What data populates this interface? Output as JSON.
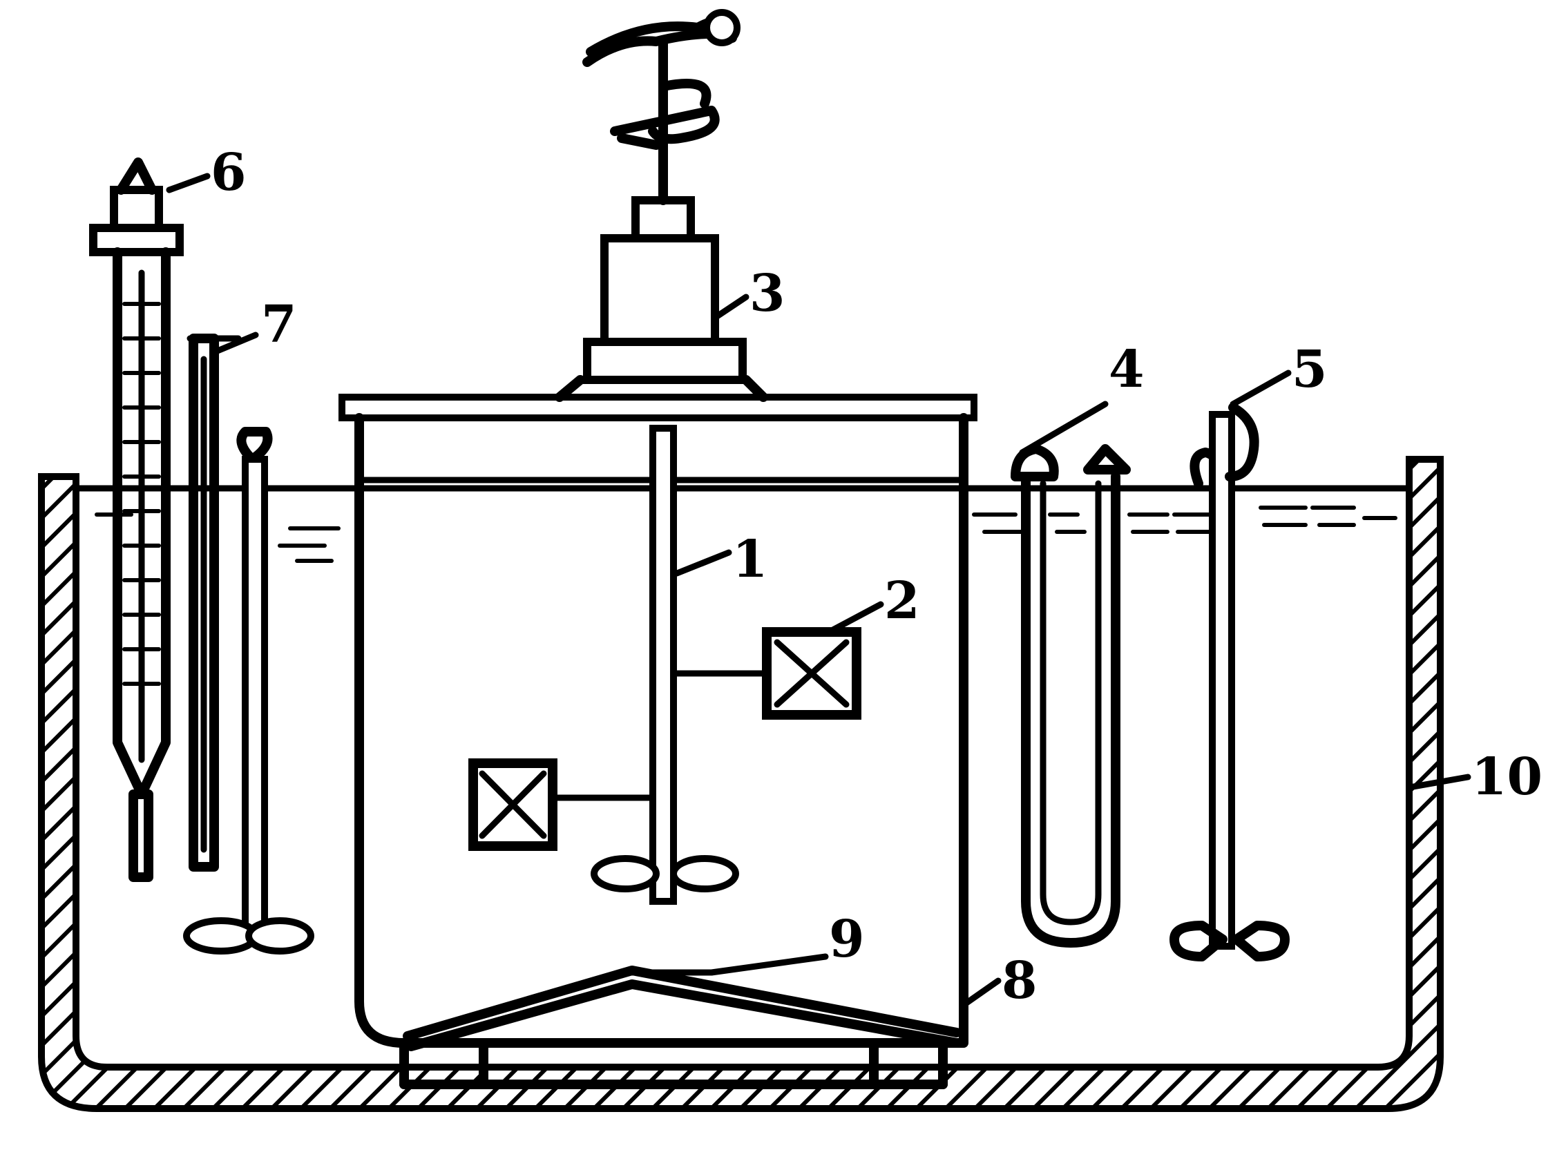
{
  "colors": {
    "ink": "#000000",
    "background": "#ffffff"
  },
  "labels": {
    "l1": "1",
    "l2": "2",
    "l3": "3",
    "l4": "4",
    "l5": "5",
    "l6": "6",
    "l7": "7",
    "l8": "8",
    "l9": "9",
    "l10": "10"
  }
}
